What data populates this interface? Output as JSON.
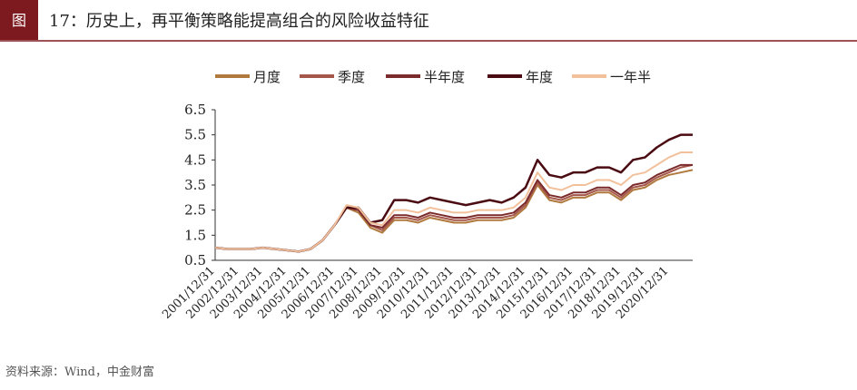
{
  "header": {
    "badge": "图",
    "title": "17：历史上，再平衡策略能提高组合的风险收益特征"
  },
  "source": "资料来源：Wind，中金财富",
  "chart_data": {
    "type": "line",
    "categories": [
      "2001/12/31",
      null,
      "2002/12/31",
      null,
      "2003/12/31",
      null,
      "2004/12/31",
      null,
      "2005/12/31",
      null,
      "2006/12/31",
      null,
      "2007/12/31",
      null,
      "2008/12/31",
      null,
      "2009/12/31",
      null,
      "2010/12/31",
      null,
      "2011/12/31",
      null,
      "2012/12/31",
      null,
      "2013/12/31",
      null,
      "2014/12/31",
      null,
      "2015/12/31",
      null,
      "2016/12/31",
      null,
      "2017/12/31",
      null,
      "2018/12/31",
      null,
      "2019/12/31",
      null,
      "2020/12/31",
      null,
      null
    ],
    "ylim": [
      0.5,
      6.5
    ],
    "yticks": [
      0.5,
      1.5,
      2.5,
      3.5,
      4.5,
      5.5,
      6.5
    ],
    "legend": "top",
    "series": [
      {
        "name": "月度",
        "color": "#b07a3e",
        "values": [
          1.0,
          0.95,
          0.95,
          0.95,
          1.0,
          0.95,
          0.9,
          0.85,
          0.95,
          1.3,
          1.9,
          2.6,
          2.4,
          1.8,
          1.6,
          2.1,
          2.1,
          2.0,
          2.2,
          2.1,
          2.0,
          2.0,
          2.1,
          2.1,
          2.1,
          2.2,
          2.6,
          3.5,
          2.9,
          2.8,
          3.0,
          3.0,
          3.2,
          3.2,
          2.9,
          3.3,
          3.4,
          3.7,
          3.9,
          4.0,
          4.1
        ]
      },
      {
        "name": "季度",
        "color": "#a5574b",
        "values": [
          1.0,
          0.95,
          0.95,
          0.95,
          1.0,
          0.95,
          0.9,
          0.85,
          0.95,
          1.3,
          1.9,
          2.6,
          2.5,
          1.9,
          1.7,
          2.2,
          2.2,
          2.1,
          2.3,
          2.2,
          2.1,
          2.1,
          2.2,
          2.2,
          2.2,
          2.3,
          2.7,
          3.6,
          3.0,
          2.9,
          3.1,
          3.1,
          3.3,
          3.3,
          3.0,
          3.4,
          3.5,
          3.8,
          4.0,
          4.2,
          4.3
        ]
      },
      {
        "name": "半年度",
        "color": "#7b2b2b",
        "values": [
          1.0,
          0.95,
          0.95,
          0.95,
          1.0,
          0.95,
          0.9,
          0.85,
          0.95,
          1.3,
          1.9,
          2.6,
          2.5,
          1.9,
          1.8,
          2.3,
          2.3,
          2.2,
          2.4,
          2.3,
          2.2,
          2.2,
          2.3,
          2.3,
          2.3,
          2.4,
          2.8,
          3.7,
          3.1,
          3.0,
          3.2,
          3.2,
          3.4,
          3.4,
          3.1,
          3.5,
          3.6,
          3.9,
          4.1,
          4.3,
          4.3
        ]
      },
      {
        "name": "年度",
        "color": "#4a0b12",
        "values": [
          1.0,
          0.95,
          0.95,
          0.95,
          1.0,
          0.95,
          0.9,
          0.85,
          0.95,
          1.3,
          1.9,
          2.6,
          2.6,
          2.0,
          2.1,
          2.9,
          2.9,
          2.8,
          3.0,
          2.9,
          2.8,
          2.7,
          2.8,
          2.9,
          2.8,
          3.0,
          3.4,
          4.5,
          3.9,
          3.8,
          4.0,
          4.0,
          4.2,
          4.2,
          4.0,
          4.5,
          4.6,
          5.0,
          5.3,
          5.5,
          5.5
        ]
      },
      {
        "name": "一年半",
        "color": "#f2c19c",
        "values": [
          1.0,
          0.95,
          0.95,
          0.95,
          1.0,
          0.95,
          0.9,
          0.85,
          0.95,
          1.3,
          1.9,
          2.7,
          2.6,
          2.0,
          1.9,
          2.5,
          2.5,
          2.4,
          2.6,
          2.5,
          2.4,
          2.4,
          2.5,
          2.5,
          2.5,
          2.6,
          3.0,
          4.0,
          3.4,
          3.3,
          3.5,
          3.5,
          3.7,
          3.7,
          3.5,
          3.9,
          4.0,
          4.3,
          4.6,
          4.8,
          4.8
        ]
      }
    ]
  }
}
